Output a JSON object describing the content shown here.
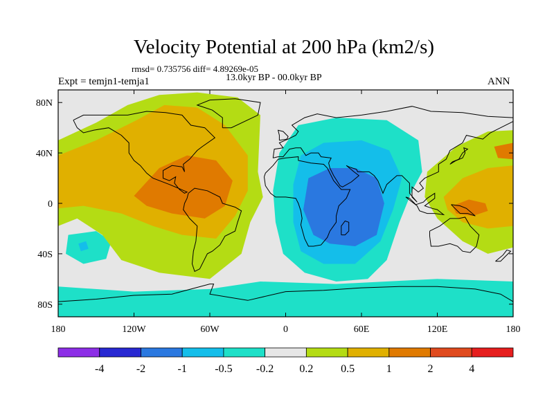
{
  "chart_data": {
    "type": "heatmap",
    "title": "Velocity Potential at 200 hPa (km2/s)",
    "stats_text": "rmsd= 0.735756 diff= 4.89269e-05",
    "subtitle": "13.0kyr BP - 00.0kyr BP",
    "experiment": "Expt = temjn1-temja1",
    "season": "ANN",
    "xlim": [
      -180,
      180
    ],
    "ylim": [
      -90,
      90
    ],
    "x_ticks": [
      {
        "value": -180,
        "label": "180"
      },
      {
        "value": -120,
        "label": "120W"
      },
      {
        "value": -60,
        "label": "60W"
      },
      {
        "value": 0,
        "label": "0"
      },
      {
        "value": 60,
        "label": "60E"
      },
      {
        "value": 120,
        "label": "120E"
      },
      {
        "value": 180,
        "label": "180"
      }
    ],
    "y_ticks": [
      {
        "value": 80,
        "label": "80N"
      },
      {
        "value": 40,
        "label": "40N"
      },
      {
        "value": 0,
        "label": "0"
      },
      {
        "value": -40,
        "label": "40S"
      },
      {
        "value": -80,
        "label": "80S"
      }
    ],
    "colorbar": {
      "levels": [
        "-4",
        "-2",
        "-1",
        "-0.5",
        "-0.2",
        "0.2",
        "0.5",
        "1",
        "2",
        "4"
      ],
      "colors": [
        "#8c2ee6",
        "#2828d2",
        "#2a78e0",
        "#14beea",
        "#1ee0c8",
        "#e6e6e6",
        "#b4dc14",
        "#e0b000",
        "#e07a00",
        "#e04a1e",
        "#e61e1e"
      ]
    },
    "regions": [
      {
        "name": "eastern-hemisphere-negative-outer",
        "level_index": 4,
        "polygon": [
          [
            10,
            62
          ],
          [
            40,
            68
          ],
          [
            80,
            66
          ],
          [
            105,
            50
          ],
          [
            108,
            25
          ],
          [
            100,
            10
          ],
          [
            90,
            -15
          ],
          [
            80,
            -45
          ],
          [
            65,
            -60
          ],
          [
            40,
            -62
          ],
          [
            15,
            -55
          ],
          [
            -2,
            -40
          ],
          [
            -8,
            -15
          ],
          [
            -10,
            10
          ],
          [
            -5,
            40
          ]
        ]
      },
      {
        "name": "eastern-hemisphere-negative-mid",
        "level_index": 3,
        "polygon": [
          [
            12,
            38
          ],
          [
            30,
            48
          ],
          [
            60,
            50
          ],
          [
            82,
            42
          ],
          [
            92,
            20
          ],
          [
            85,
            -5
          ],
          [
            75,
            -30
          ],
          [
            55,
            -48
          ],
          [
            30,
            -48
          ],
          [
            12,
            -38
          ],
          [
            6,
            -15
          ],
          [
            6,
            15
          ]
        ]
      },
      {
        "name": "eastern-hemisphere-negative-core",
        "level_index": 2,
        "polygon": [
          [
            18,
            20
          ],
          [
            35,
            28
          ],
          [
            55,
            28
          ],
          [
            72,
            20
          ],
          [
            78,
            0
          ],
          [
            72,
            -25
          ],
          [
            55,
            -34
          ],
          [
            35,
            -32
          ],
          [
            22,
            -25
          ],
          [
            14,
            -5
          ]
        ]
      },
      {
        "name": "southern-ocean-negative-band",
        "level_index": 4,
        "polygon": [
          [
            -180,
            -66
          ],
          [
            -120,
            -70
          ],
          [
            -60,
            -68
          ],
          [
            -20,
            -62
          ],
          [
            40,
            -64
          ],
          [
            120,
            -60
          ],
          [
            180,
            -62
          ],
          [
            180,
            -90
          ],
          [
            -180,
            -90
          ]
        ]
      },
      {
        "name": "south-pacific-negative-blob",
        "level_index": 4,
        "polygon": [
          [
            -172,
            -25
          ],
          [
            -150,
            -22
          ],
          [
            -138,
            -30
          ],
          [
            -142,
            -44
          ],
          [
            -160,
            -48
          ],
          [
            -174,
            -40
          ]
        ]
      },
      {
        "name": "south-pacific-negative-core",
        "level_index": 3,
        "polygon": [
          [
            -164,
            -32
          ],
          [
            -158,
            -30
          ],
          [
            -156,
            -36
          ],
          [
            -162,
            -38
          ]
        ]
      },
      {
        "name": "americas-positive-outer",
        "level_index": 6,
        "polygon": [
          [
            -180,
            50
          ],
          [
            -150,
            64
          ],
          [
            -125,
            78
          ],
          [
            -100,
            86
          ],
          [
            -70,
            88
          ],
          [
            -38,
            84
          ],
          [
            -20,
            70
          ],
          [
            -22,
            25
          ],
          [
            -18,
            5
          ],
          [
            -28,
            -15
          ],
          [
            -35,
            -40
          ],
          [
            -60,
            -60
          ],
          [
            -100,
            -55
          ],
          [
            -130,
            -45
          ],
          [
            -145,
            -25
          ],
          [
            -165,
            -12
          ],
          [
            -180,
            -18
          ]
        ]
      },
      {
        "name": "americas-positive-mid",
        "level_index": 7,
        "polygon": [
          [
            -180,
            38
          ],
          [
            -150,
            50
          ],
          [
            -118,
            66
          ],
          [
            -96,
            78
          ],
          [
            -70,
            76
          ],
          [
            -48,
            62
          ],
          [
            -30,
            38
          ],
          [
            -30,
            10
          ],
          [
            -40,
            -10
          ],
          [
            -55,
            -28
          ],
          [
            -82,
            -25
          ],
          [
            -105,
            -18
          ],
          [
            -130,
            -8
          ],
          [
            -160,
            -2
          ],
          [
            -180,
            -4
          ]
        ]
      },
      {
        "name": "americas-positive-core",
        "level_index": 8,
        "polygon": [
          [
            -120,
            6
          ],
          [
            -100,
            28
          ],
          [
            -78,
            38
          ],
          [
            -55,
            34
          ],
          [
            -42,
            18
          ],
          [
            -48,
            -2
          ],
          [
            -64,
            -12
          ],
          [
            -90,
            -8
          ],
          [
            -110,
            -2
          ]
        ]
      },
      {
        "name": "western-pacific-positive-outer",
        "level_index": 6,
        "polygon": [
          [
            112,
            25
          ],
          [
            135,
            45
          ],
          [
            160,
            57
          ],
          [
            180,
            58
          ],
          [
            180,
            -35
          ],
          [
            160,
            -40
          ],
          [
            140,
            -30
          ],
          [
            120,
            -12
          ],
          [
            110,
            5
          ]
        ]
      },
      {
        "name": "western-pacific-positive-mid",
        "level_index": 7,
        "polygon": [
          [
            125,
            5
          ],
          [
            140,
            20
          ],
          [
            160,
            28
          ],
          [
            180,
            30
          ],
          [
            180,
            -18
          ],
          [
            160,
            -20
          ],
          [
            140,
            -15
          ],
          [
            128,
            -5
          ]
        ]
      },
      {
        "name": "western-pacific-positive-core",
        "level_index": 8,
        "polygon": [
          [
            132,
            -2
          ],
          [
            145,
            3
          ],
          [
            158,
            0
          ],
          [
            160,
            -6
          ],
          [
            148,
            -10
          ],
          [
            135,
            -8
          ]
        ]
      },
      {
        "name": "pacific-east-positive-core",
        "level_index": 8,
        "polygon": [
          [
            165,
            45
          ],
          [
            180,
            48
          ],
          [
            180,
            35
          ],
          [
            168,
            36
          ]
        ]
      }
    ]
  }
}
